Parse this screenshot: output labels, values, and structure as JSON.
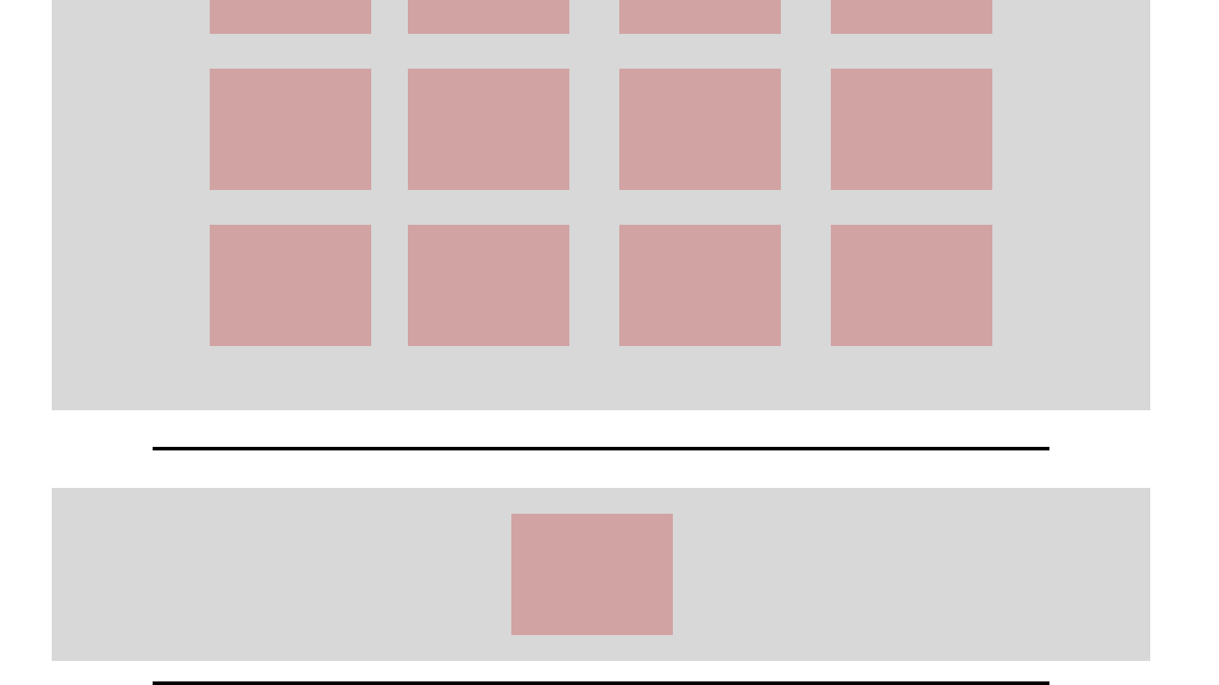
{
  "colors": {
    "page_background": "#ffffff",
    "panel_background": "#d8d8d8",
    "tile_fill": "#d1a3a3",
    "divider": "#000000"
  },
  "grid_section": {
    "rows": 3,
    "columns": 4,
    "tiles": 12,
    "first_row_partially_visible": true
  },
  "single_section": {
    "tiles": 1
  },
  "dividers": 2
}
